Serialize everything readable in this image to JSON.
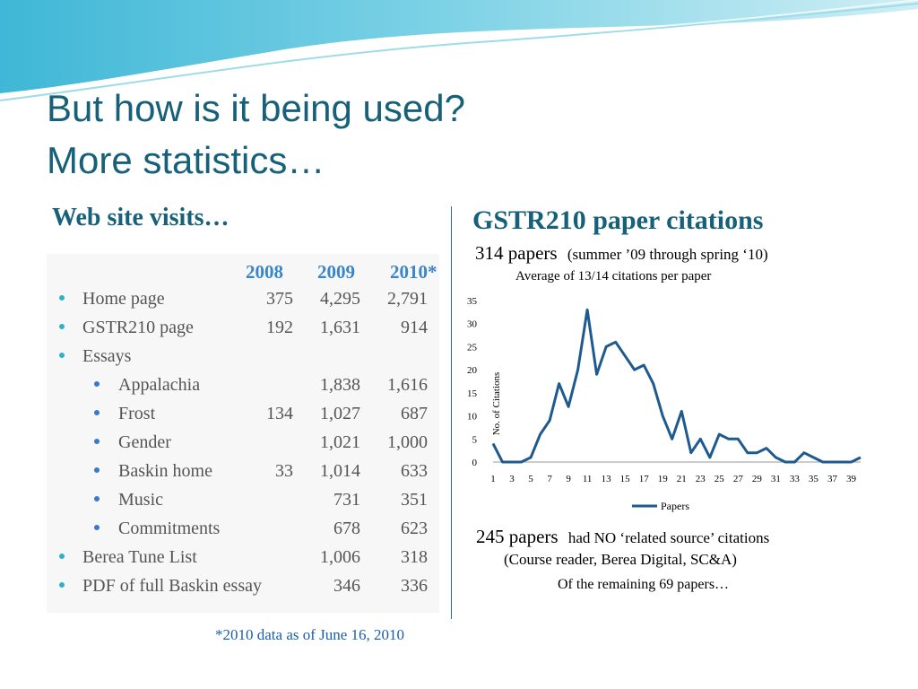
{
  "slide": {
    "title_line1": "But how is it being used?",
    "title_line2": "More statistics…",
    "colors": {
      "title": "#17607a",
      "accent": "#3a86c8",
      "line": "#1f5a8f"
    }
  },
  "visits": {
    "heading": "Web site visits…",
    "columns": [
      "2008",
      "2009",
      "2010*"
    ],
    "rows": [
      {
        "level": 1,
        "label": "Home page",
        "v2008": "375",
        "v2009": "4,295",
        "v2010": "2,791"
      },
      {
        "level": 1,
        "label": "GSTR210 page",
        "v2008": "192",
        "v2009": "1,631",
        "v2010": "914"
      },
      {
        "level": 1,
        "label": "Essays",
        "v2008": "",
        "v2009": "",
        "v2010": ""
      },
      {
        "level": 2,
        "label": "Appalachia",
        "v2008": "",
        "v2009": "1,838",
        "v2010": "1,616"
      },
      {
        "level": 2,
        "label": "Frost",
        "v2008": "134",
        "v2009": "1,027",
        "v2010": "687"
      },
      {
        "level": 2,
        "label": "Gender",
        "v2008": "",
        "v2009": "1,021",
        "v2010": "1,000"
      },
      {
        "level": 2,
        "label": "Baskin home",
        "v2008": "33",
        "v2009": "1,014",
        "v2010": "633"
      },
      {
        "level": 2,
        "label": "Music",
        "v2008": "",
        "v2009": "731",
        "v2010": "351"
      },
      {
        "level": 2,
        "label": "Commitments",
        "v2008": "",
        "v2009": "678",
        "v2010": "623"
      },
      {
        "level": 1,
        "label": "Berea Tune List",
        "v2008": "",
        "v2009": "1,006",
        "v2010": "318"
      },
      {
        "level": 1,
        "label": "PDF of full Baskin essay",
        "v2008": "",
        "v2009": "346",
        "v2010": "336"
      }
    ],
    "footnote": "*2010 data as of June 16, 2010"
  },
  "citations": {
    "heading": "GSTR210 paper citations",
    "papers_count": "314 papers",
    "papers_period": "(summer ’09 through spring ‘10)",
    "average": "Average of 13/14 citations per paper",
    "no_related_count": "245 papers",
    "no_related_text": "had NO ‘related source’ citations",
    "sources": "(Course reader, Berea Digital, SC&A)",
    "remaining": "Of the remaining 69 papers…"
  },
  "chart_data": {
    "type": "line",
    "ylabel": "No. of Citations",
    "xlabel": "",
    "ylim": [
      0,
      35
    ],
    "yticks": [
      0,
      5,
      10,
      15,
      20,
      25,
      30,
      35
    ],
    "xtick_labels": [
      "1",
      "3",
      "5",
      "7",
      "9",
      "11",
      "13",
      "15",
      "17",
      "19",
      "21",
      "23",
      "25",
      "27",
      "29",
      "31",
      "33",
      "35",
      "37",
      "39"
    ],
    "x": [
      1,
      2,
      3,
      4,
      5,
      6,
      7,
      8,
      9,
      10,
      11,
      12,
      13,
      14,
      15,
      16,
      17,
      18,
      19,
      20,
      21,
      22,
      23,
      24,
      25,
      26,
      27,
      28,
      29,
      30,
      31,
      32,
      33,
      34,
      35,
      36,
      37,
      38,
      39,
      40
    ],
    "series": [
      {
        "name": "Papers",
        "values": [
          4,
          0,
          0,
          0,
          1,
          6,
          9,
          17,
          12,
          20,
          33,
          19,
          25,
          26,
          23,
          20,
          21,
          17,
          10,
          5,
          11,
          2,
          5,
          1,
          6,
          5,
          5,
          2,
          2,
          3,
          1,
          0,
          0,
          2,
          1,
          0,
          0,
          0,
          0,
          1
        ]
      }
    ],
    "legend": "bottom"
  }
}
